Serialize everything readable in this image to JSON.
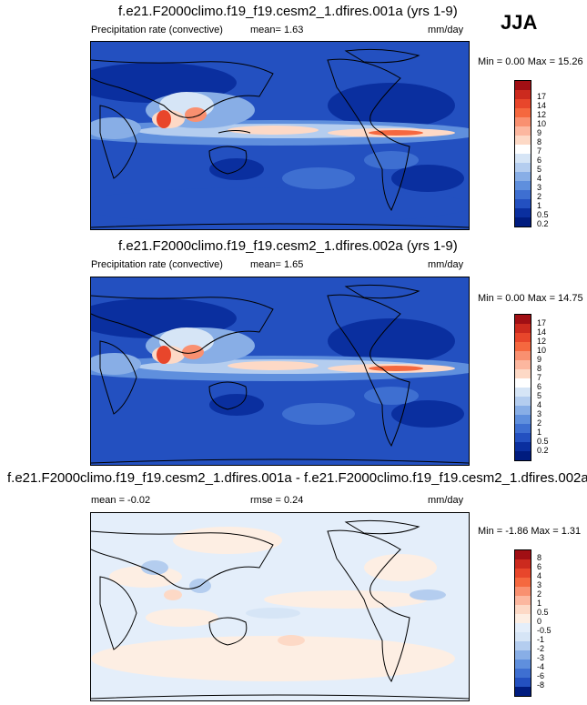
{
  "season": "JJA",
  "panels": [
    {
      "title": "f.e21.F2000climo.f19_f19.cesm2_1.dfires.001a (yrs 1-9)",
      "left_label": "Precipitation rate (convective)",
      "mid_label": "mean=   1.63",
      "units": "mm/day",
      "minmax": "Min =   0.00 Max =  15.26",
      "colorbar_labels": [
        "17",
        "14",
        "12",
        "10",
        "9",
        "8",
        "7",
        "6",
        "5",
        "4",
        "3",
        "2",
        "1",
        "0.5",
        "0.2"
      ],
      "colorbar_colors": [
        "#a10f14",
        "#cc2a1e",
        "#e8462b",
        "#f5683f",
        "#f99070",
        "#fcb79f",
        "#fdd9c6",
        "#ffffff",
        "#d6e5f6",
        "#b4cdef",
        "#88aee6",
        "#5f8fdd",
        "#3e6fd1",
        "#2350c0",
        "#0a2f9f",
        "#001c7f"
      ]
    },
    {
      "title": "f.e21.F2000climo.f19_f19.cesm2_1.dfires.002a (yrs 1-9)",
      "left_label": "Precipitation rate (convective)",
      "mid_label": "mean=   1.65",
      "units": "mm/day",
      "minmax": "Min =   0.00 Max =  14.75",
      "colorbar_labels": [
        "17",
        "14",
        "12",
        "10",
        "9",
        "8",
        "7",
        "6",
        "5",
        "4",
        "3",
        "2",
        "1",
        "0.5",
        "0.2"
      ],
      "colorbar_colors": [
        "#a10f14",
        "#cc2a1e",
        "#e8462b",
        "#f5683f",
        "#f99070",
        "#fcb79f",
        "#fdd9c6",
        "#ffffff",
        "#d6e5f6",
        "#b4cdef",
        "#88aee6",
        "#5f8fdd",
        "#3e6fd1",
        "#2350c0",
        "#0a2f9f",
        "#001c7f"
      ]
    },
    {
      "title": "f.e21.F2000climo.f19_f19.cesm2_1.dfires.001a - f.e21.F2000climo.f19_f19.cesm2_1.dfires.002a",
      "left_label": "mean =  -0.02",
      "mid_label": "rmse =   0.24",
      "units": "mm/day",
      "minmax": "Min =  -1.86 Max =   1.31",
      "colorbar_labels": [
        "8",
        "6",
        "4",
        "3",
        "2",
        "1",
        "0.5",
        "0",
        "-0.5",
        "-1",
        "-2",
        "-3",
        "-4",
        "-6",
        "-8"
      ],
      "colorbar_colors": [
        "#a10f14",
        "#cc2a1e",
        "#e8462b",
        "#f5683f",
        "#f99070",
        "#fcb79f",
        "#fdd9c6",
        "#fdeee3",
        "#e4eefa",
        "#d6e5f6",
        "#b4cdef",
        "#88aee6",
        "#5f8fdd",
        "#3e6fd1",
        "#2350c0",
        "#001c7f"
      ]
    }
  ]
}
